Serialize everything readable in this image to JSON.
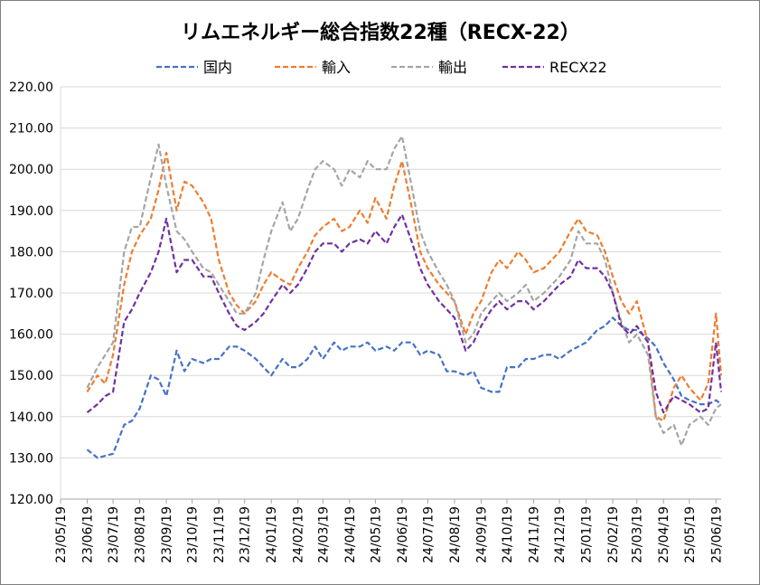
{
  "chart_data": {
    "type": "line",
    "title": "リムエネルギー総合指数22種（RECX-22）",
    "xlabel": "",
    "ylabel": "",
    "ylim": [
      120,
      220
    ],
    "yticks": [
      "120.00",
      "130.00",
      "140.00",
      "150.00",
      "160.00",
      "170.00",
      "180.00",
      "190.00",
      "200.00",
      "210.00",
      "220.00"
    ],
    "x_tick_labels": [
      "23/05/19",
      "23/06/19",
      "23/07/19",
      "23/08/19",
      "23/09/19",
      "23/10/19",
      "23/11/19",
      "23/12/19",
      "24/01/19",
      "24/02/19",
      "24/03/19",
      "24/04/19",
      "24/05/19",
      "24/06/19",
      "24/07/19",
      "24/08/19",
      "24/09/19",
      "24/10/19",
      "24/11/19",
      "24/12/19",
      "25/01/19",
      "25/02/19",
      "25/03/19",
      "25/04/19",
      "25/05/19",
      "25/06/19"
    ],
    "x_date_range": [
      "23/06/19",
      "25/06/25"
    ],
    "grid": true,
    "legend_position": "top",
    "series": [
      {
        "name": "国内",
        "color": "#4472C4",
        "x": [
          "23/06/19",
          "23/07/01",
          "23/07/10",
          "23/07/19",
          "23/08/01",
          "23/08/10",
          "23/08/19",
          "23/09/01",
          "23/09/10",
          "23/09/19",
          "23/10/01",
          "23/10/10",
          "23/10/19",
          "23/11/01",
          "23/11/10",
          "23/11/19",
          "23/12/01",
          "23/12/10",
          "23/12/19",
          "24/01/01",
          "24/01/10",
          "24/01/19",
          "24/02/01",
          "24/02/10",
          "24/02/19",
          "24/03/01",
          "24/03/10",
          "24/03/19",
          "24/04/01",
          "24/04/10",
          "24/04/19",
          "24/05/01",
          "24/05/10",
          "24/05/19",
          "24/06/01",
          "24/06/10",
          "24/06/19",
          "24/07/01",
          "24/07/10",
          "24/07/19",
          "24/08/01",
          "24/08/10",
          "24/08/19",
          "24/09/01",
          "24/09/10",
          "24/09/19",
          "24/10/01",
          "24/10/10",
          "24/10/19",
          "24/11/01",
          "24/11/10",
          "24/11/19",
          "24/12/01",
          "24/12/10",
          "24/12/19",
          "25/01/01",
          "25/01/10",
          "25/01/19",
          "25/02/01",
          "25/02/10",
          "25/02/19",
          "25/03/01",
          "25/03/10",
          "25/03/19",
          "25/04/01",
          "25/04/10",
          "25/04/19",
          "25/05/01",
          "25/05/10",
          "25/05/19",
          "25/06/01",
          "25/06/10",
          "25/06/19",
          "25/06/25"
        ],
        "values": [
          132,
          130,
          130.5,
          131,
          138,
          139,
          142,
          150,
          149,
          145,
          156,
          151,
          154,
          153,
          154,
          154,
          157,
          157,
          156,
          154,
          152,
          150,
          154,
          152,
          152,
          154,
          157,
          154,
          158,
          156,
          157,
          157,
          158,
          156,
          157,
          156,
          158,
          158,
          155,
          156,
          155,
          151,
          151,
          150,
          151,
          147,
          146,
          146,
          152,
          152,
          154,
          154,
          155,
          155,
          154,
          156,
          157,
          158,
          161,
          162,
          164,
          162,
          161,
          161,
          159,
          157,
          153,
          149,
          145,
          144,
          143,
          143,
          144,
          143
        ]
      },
      {
        "name": "輸入",
        "color": "#ED7D31",
        "x": [
          "23/06/19",
          "23/07/01",
          "23/07/10",
          "23/07/19",
          "23/08/01",
          "23/08/10",
          "23/08/19",
          "23/09/01",
          "23/09/10",
          "23/09/19",
          "23/10/01",
          "23/10/10",
          "23/10/19",
          "23/11/01",
          "23/11/10",
          "23/11/19",
          "23/12/01",
          "23/12/10",
          "23/12/19",
          "24/01/01",
          "24/01/10",
          "24/01/19",
          "24/02/01",
          "24/02/10",
          "24/02/19",
          "24/03/01",
          "24/03/10",
          "24/03/19",
          "24/04/01",
          "24/04/10",
          "24/04/19",
          "24/05/01",
          "24/05/10",
          "24/05/19",
          "24/06/01",
          "24/06/10",
          "24/06/19",
          "24/07/01",
          "24/07/10",
          "24/07/19",
          "24/08/01",
          "24/08/10",
          "24/08/19",
          "24/09/01",
          "24/09/10",
          "24/09/19",
          "24/10/01",
          "24/10/10",
          "24/10/19",
          "24/11/01",
          "24/11/10",
          "24/11/19",
          "24/12/01",
          "24/12/10",
          "24/12/19",
          "25/01/01",
          "25/01/10",
          "25/01/19",
          "25/02/01",
          "25/02/10",
          "25/02/19",
          "25/03/01",
          "25/03/10",
          "25/03/19",
          "25/04/01",
          "25/04/10",
          "25/04/19",
          "25/05/01",
          "25/05/10",
          "25/05/19",
          "25/06/01",
          "25/06/10",
          "25/06/19",
          "25/06/25"
        ],
        "values": [
          146,
          150,
          148,
          155,
          172,
          180,
          184,
          188,
          195,
          204,
          190,
          197,
          196,
          192,
          188,
          178,
          170,
          167,
          165,
          168,
          172,
          175,
          173,
          172,
          176,
          180,
          184,
          186,
          188,
          185,
          186,
          190,
          187,
          193,
          188,
          196,
          202,
          190,
          180,
          176,
          172,
          170,
          168,
          160,
          165,
          168,
          175,
          178,
          176,
          180,
          178,
          175,
          176,
          178,
          180,
          185,
          188,
          185,
          184,
          180,
          174,
          168,
          165,
          168,
          158,
          140,
          139,
          147,
          150,
          147,
          144,
          148,
          165,
          150
        ]
      },
      {
        "name": "輸出",
        "color": "#A5A5A5",
        "x": [
          "23/06/19",
          "23/07/01",
          "23/07/10",
          "23/07/19",
          "23/08/01",
          "23/08/10",
          "23/08/19",
          "23/09/01",
          "23/09/10",
          "23/09/19",
          "23/10/01",
          "23/10/10",
          "23/10/19",
          "23/11/01",
          "23/11/10",
          "23/11/19",
          "23/12/01",
          "23/12/10",
          "23/12/19",
          "24/01/01",
          "24/01/10",
          "24/01/19",
          "24/02/01",
          "24/02/10",
          "24/02/19",
          "24/03/01",
          "24/03/10",
          "24/03/19",
          "24/04/01",
          "24/04/10",
          "24/04/19",
          "24/05/01",
          "24/05/10",
          "24/05/19",
          "24/06/01",
          "24/06/10",
          "24/06/19",
          "24/07/01",
          "24/07/10",
          "24/07/19",
          "24/08/01",
          "24/08/10",
          "24/08/19",
          "24/09/01",
          "24/09/10",
          "24/09/19",
          "24/10/01",
          "24/10/10",
          "24/10/19",
          "24/11/01",
          "24/11/10",
          "24/11/19",
          "24/12/01",
          "24/12/10",
          "24/12/19",
          "25/01/01",
          "25/01/10",
          "25/01/19",
          "25/02/01",
          "25/02/10",
          "25/02/19",
          "25/03/01",
          "25/03/10",
          "25/03/19",
          "25/04/01",
          "25/04/10",
          "25/04/19",
          "25/05/01",
          "25/05/10",
          "25/05/19",
          "25/06/01",
          "25/06/10",
          "25/06/19",
          "25/06/25"
        ],
        "values": [
          147,
          152,
          155,
          158,
          180,
          186,
          186,
          198,
          206,
          196,
          185,
          183,
          180,
          176,
          175,
          172,
          168,
          165,
          165,
          170,
          178,
          185,
          192,
          185,
          188,
          195,
          200,
          202,
          200,
          196,
          200,
          198,
          202,
          200,
          200,
          205,
          208,
          195,
          185,
          180,
          175,
          172,
          168,
          158,
          160,
          165,
          168,
          170,
          168,
          170,
          172,
          168,
          170,
          172,
          174,
          178,
          185,
          182,
          182,
          178,
          170,
          163,
          158,
          160,
          155,
          140,
          136,
          138,
          133,
          138,
          140,
          138,
          142,
          143
        ]
      },
      {
        "name": "RECX22",
        "color": "#7030A0",
        "x": [
          "23/06/19",
          "23/07/01",
          "23/07/10",
          "23/07/19",
          "23/08/01",
          "23/08/10",
          "23/08/19",
          "23/09/01",
          "23/09/10",
          "23/09/19",
          "23/10/01",
          "23/10/10",
          "23/10/19",
          "23/11/01",
          "23/11/10",
          "23/11/19",
          "23/12/01",
          "23/12/10",
          "23/12/19",
          "24/01/01",
          "24/01/10",
          "24/01/19",
          "24/02/01",
          "24/02/10",
          "24/02/19",
          "24/03/01",
          "24/03/10",
          "24/03/19",
          "24/04/01",
          "24/04/10",
          "24/04/19",
          "24/05/01",
          "24/05/10",
          "24/05/19",
          "24/06/01",
          "24/06/10",
          "24/06/19",
          "24/07/01",
          "24/07/10",
          "24/07/19",
          "24/08/01",
          "24/08/10",
          "24/08/19",
          "24/09/01",
          "24/09/10",
          "24/09/19",
          "24/10/01",
          "24/10/10",
          "24/10/19",
          "24/11/01",
          "24/11/10",
          "24/11/19",
          "24/12/01",
          "24/12/10",
          "24/12/19",
          "25/01/01",
          "25/01/10",
          "25/01/19",
          "25/02/01",
          "25/02/10",
          "25/02/19",
          "25/03/01",
          "25/03/10",
          "25/03/19",
          "25/04/01",
          "25/04/10",
          "25/04/19",
          "25/05/01",
          "25/05/10",
          "25/05/19",
          "25/06/01",
          "25/06/10",
          "25/06/19",
          "25/06/25"
        ],
        "values": [
          141,
          143,
          145,
          146,
          163,
          166,
          170,
          175,
          180,
          188,
          175,
          178,
          178,
          174,
          174,
          170,
          165,
          162,
          161,
          163,
          165,
          168,
          172,
          170,
          172,
          176,
          180,
          182,
          182,
          180,
          182,
          183,
          182,
          185,
          182,
          186,
          189,
          182,
          176,
          172,
          168,
          166,
          164,
          156,
          158,
          162,
          166,
          168,
          166,
          168,
          168,
          166,
          168,
          170,
          172,
          174,
          178,
          176,
          176,
          174,
          170,
          162,
          160,
          162,
          158,
          146,
          141,
          145,
          144,
          143,
          141,
          142,
          158,
          146
        ]
      }
    ]
  }
}
